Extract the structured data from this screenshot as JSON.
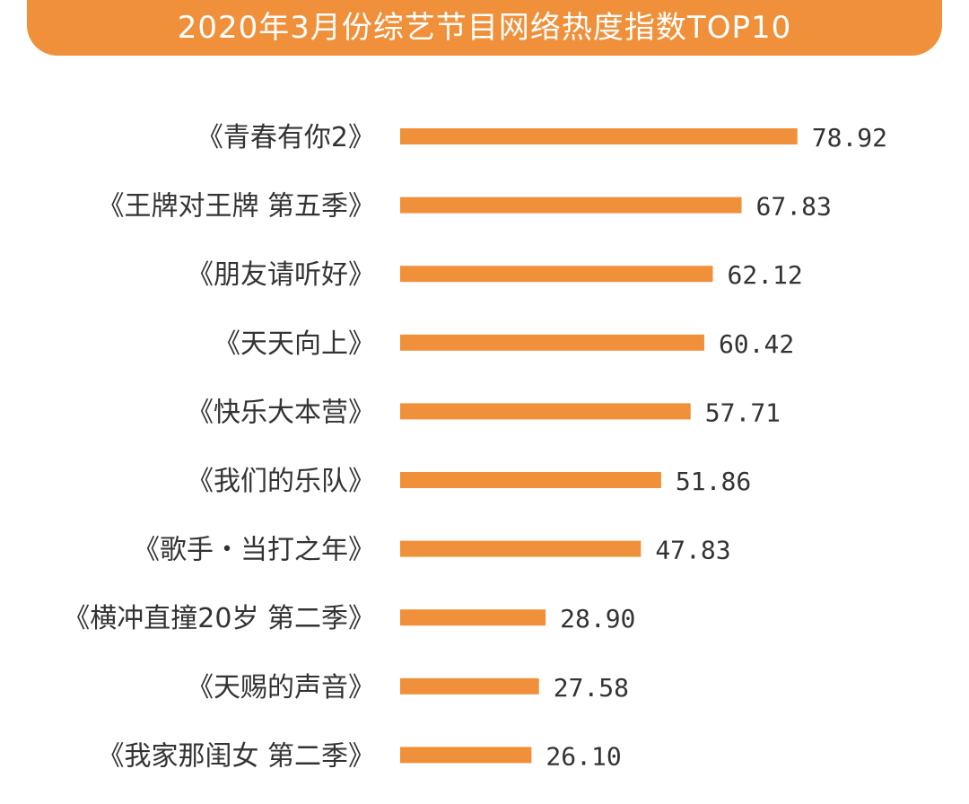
{
  "chart_data": {
    "type": "bar",
    "orientation": "horizontal",
    "title": "2020年3月份综艺节目网络热度指数TOP10",
    "categories": [
      "《青春有你2》",
      "《王牌对王牌 第五季》",
      "《朋友请听好》",
      "《天天向上》",
      "《快乐大本营》",
      "《我们的乐队》",
      "《歌手・当打之年》",
      "《横冲直撞20岁 第二季》",
      "《天赐的声音》",
      "《我家那闺女 第二季》"
    ],
    "values": [
      78.92,
      67.83,
      62.12,
      60.42,
      57.71,
      51.86,
      47.83,
      28.9,
      27.58,
      26.1
    ],
    "value_labels": [
      "78.92",
      "67.83",
      "62.12",
      "60.42",
      "57.71",
      "51.86",
      "47.83",
      "28.90",
      "27.58",
      "26.10"
    ],
    "xlim": [
      0,
      80
    ],
    "bar_color": "#f0903a",
    "banner_color": "#f0903a",
    "grid": false,
    "legend": "none"
  }
}
